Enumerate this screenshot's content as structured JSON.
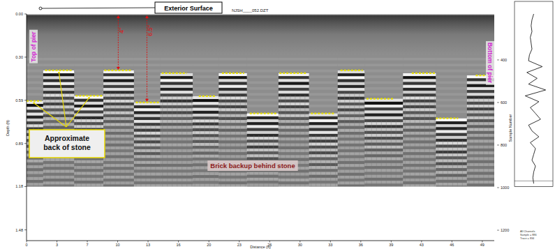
{
  "chart_data": {
    "type": "radargram",
    "title": "NJSH____052.DZT",
    "x_label": "Distance (ft)",
    "y_label": "Depth (ft)",
    "y2_label": "Sample Number",
    "xlim": [
      0,
      50.5
    ],
    "ylim": [
      0,
      1.55
    ],
    "y2lim": [
      184,
      1249
    ],
    "xticks": [
      0,
      {
        "value": 3.28,
        "label": "3"
      },
      {
        "value": 6.56,
        "label": "7"
      },
      {
        "value": 9.84,
        "label": "10"
      },
      {
        "value": 13.12,
        "label": "13"
      },
      {
        "value": 16.4,
        "label": "16"
      },
      {
        "value": 19.69,
        "label": "20"
      },
      {
        "value": 22.97,
        "label": "23"
      },
      {
        "value": 26.25,
        "label": "26"
      },
      {
        "value": 29.53,
        "label": "30"
      },
      {
        "value": 32.81,
        "label": "33"
      },
      {
        "value": 36.09,
        "label": "36"
      },
      {
        "value": 39.37,
        "label": "39"
      },
      {
        "value": 42.65,
        "label": "43"
      },
      {
        "value": 45.93,
        "label": "46"
      },
      {
        "value": 49.21,
        "label": "49"
      }
    ],
    "yticks": [
      {
        "value": 0,
        "label": "0.00"
      },
      {
        "value": 0.2953,
        "label": "0.30"
      },
      0.59,
      {
        "value": 0.8858,
        "label": "0.89"
      },
      1.18,
      {
        "value": 1.4764,
        "label": "1.48"
      }
    ],
    "y2ticks": [
      400,
      600,
      800,
      1000,
      1200
    ],
    "record_depth": 1.18,
    "series": [
      {
        "type": "segment",
        "color": "#e8e000",
        "line_style": "dashed",
        "x_start": [
          0.0,
          2.0,
          5.3,
          8.4,
          11.8,
          14.6,
          18.6,
          21.1,
          24.1,
          27.3,
          30.7,
          33.9,
          36.7,
          41.6,
          44.2,
          48.5
        ],
        "x_end": [
          1.6,
          5.0,
          8.2,
          11.4,
          14.3,
          17.3,
          20.4,
          23.5,
          27.1,
          30.3,
          33.3,
          36.3,
          39.7,
          44.2,
          46.6,
          50.3
        ],
        "values": [
          0.595,
          0.386,
          0.56,
          0.386,
          0.605,
          0.405,
          0.562,
          0.405,
          0.68,
          0.405,
          0.68,
          0.386,
          0.58,
          0.405,
          0.714,
          0.42
        ]
      }
    ],
    "trace": {
      "lim": [
        -1,
        1
      ],
      "depth": [
        0,
        0.04,
        0.08,
        0.12,
        0.16,
        0.2,
        0.24,
        0.28,
        0.32,
        0.36,
        0.4,
        0.44,
        0.48,
        0.52,
        0.56,
        0.6,
        0.64,
        0.68,
        0.72,
        0.76,
        0.8,
        0.84,
        0.88,
        0.92,
        0.96,
        1.0,
        1.04,
        1.08,
        1.12,
        1.16
      ],
      "values": [
        0.0,
        -0.1,
        -0.15,
        -0.1,
        -0.2,
        -0.15,
        -0.1,
        -0.25,
        -0.3,
        0.5,
        -0.4,
        0.2,
        -0.3,
        0.7,
        -0.5,
        0.3,
        -0.2,
        0.1,
        0.4,
        -0.3,
        -0.1,
        0.3,
        -0.2,
        0.1,
        0.0,
        -0.1,
        0.1,
        0.0,
        -0.05,
        0.0
      ]
    },
    "annotations": {
      "exterior_surface": "Exterior Surface",
      "top_of_pier": "Top of pier",
      "bottom_of_pier": "Bottom of pier",
      "back_of_stone": "Approximate back of stone",
      "brick_backup": "Brick backup behind stone",
      "thickness": [
        {
          "label": "4\"",
          "x": 9.9,
          "depth": 0.386
        },
        {
          "label": "6.5\"",
          "x": 13.0,
          "depth": 0.605
        }
      ],
      "info": [
        "All Channels",
        "Sample = 886",
        "Trace = 834"
      ]
    }
  }
}
